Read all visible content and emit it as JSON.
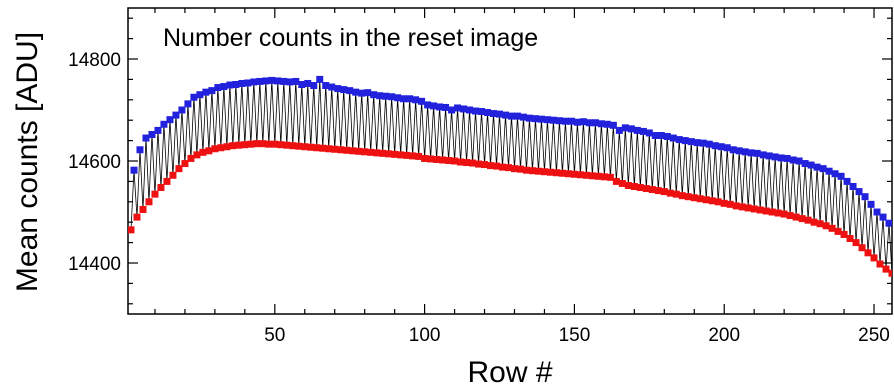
{
  "chart_data": {
    "type": "scatter",
    "title": "Number counts in the reset image",
    "xlabel": "Row #",
    "ylabel": "Mean counts [ADU]",
    "xlim": [
      1,
      256
    ],
    "ylim": [
      14300,
      14900
    ],
    "x_ticks": [
      50,
      100,
      150,
      200,
      250
    ],
    "y_ticks": [
      14400,
      14600,
      14800
    ],
    "grid": false,
    "connector_line": {
      "color": "#000000",
      "style": "solid-thin",
      "alternates_series": true
    },
    "series": [
      {
        "role": "upper",
        "color": "#2222dd",
        "marker": "square",
        "x": [
          3,
          5,
          7,
          9,
          11,
          13,
          15,
          17,
          19,
          21,
          23,
          25,
          27,
          29,
          31,
          33,
          35,
          37,
          39,
          41,
          43,
          45,
          47,
          49,
          51,
          53,
          55,
          57,
          59,
          61,
          63,
          65,
          67,
          69,
          71,
          73,
          75,
          77,
          79,
          81,
          83,
          85,
          87,
          89,
          91,
          93,
          95,
          97,
          99,
          101,
          103,
          105,
          107,
          109,
          111,
          113,
          115,
          117,
          119,
          121,
          123,
          125,
          127,
          129,
          131,
          133,
          135,
          137,
          139,
          141,
          143,
          145,
          147,
          149,
          151,
          153,
          155,
          157,
          159,
          161,
          163,
          165,
          167,
          169,
          171,
          173,
          175,
          177,
          179,
          181,
          183,
          185,
          187,
          189,
          191,
          193,
          195,
          197,
          199,
          201,
          203,
          205,
          207,
          209,
          211,
          213,
          215,
          217,
          219,
          221,
          223,
          225,
          227,
          229,
          231,
          233,
          235,
          237,
          239,
          241,
          243,
          245,
          247,
          249,
          251,
          253,
          255
        ],
        "y": [
          14582,
          14622,
          14645,
          14652,
          14660,
          14672,
          14681,
          14690,
          14700,
          14712,
          14725,
          14730,
          14735,
          14738,
          14744,
          14746,
          14749,
          14750,
          14752,
          14753,
          14755,
          14756,
          14757,
          14758,
          14757,
          14756,
          14755,
          14756,
          14750,
          14752,
          14748,
          14760,
          14748,
          14745,
          14742,
          14740,
          14738,
          14735,
          14733,
          14734,
          14730,
          14728,
          14727,
          14726,
          14724,
          14722,
          14722,
          14720,
          14717,
          14710,
          14708,
          14706,
          14705,
          14700,
          14704,
          14702,
          14700,
          14698,
          14697,
          14695,
          14693,
          14692,
          14690,
          14688,
          14688,
          14686,
          14684,
          14683,
          14682,
          14681,
          14680,
          14679,
          14678,
          14678,
          14676,
          14677,
          14675,
          14675,
          14673,
          14672,
          14670,
          14660,
          14665,
          14663,
          14660,
          14658,
          14655,
          14650,
          14650,
          14648,
          14645,
          14642,
          14640,
          14638,
          14636,
          14635,
          14633,
          14630,
          14628,
          14626,
          14622,
          14620,
          14618,
          14616,
          14615,
          14612,
          14610,
          14608,
          14606,
          14605,
          14602,
          14600,
          14595,
          14592,
          14588,
          14585,
          14580,
          14575,
          14570,
          14560,
          14550,
          14540,
          14530,
          14515,
          14500,
          14490,
          14478
        ]
      },
      {
        "role": "lower",
        "color": "#ee1111",
        "marker": "square",
        "x": [
          2,
          4,
          6,
          8,
          10,
          12,
          14,
          16,
          18,
          20,
          22,
          24,
          26,
          28,
          30,
          32,
          34,
          36,
          38,
          40,
          42,
          44,
          46,
          48,
          50,
          52,
          54,
          56,
          58,
          60,
          62,
          64,
          66,
          68,
          70,
          72,
          74,
          76,
          78,
          80,
          82,
          84,
          86,
          88,
          90,
          92,
          94,
          96,
          98,
          100,
          102,
          104,
          106,
          108,
          110,
          112,
          114,
          116,
          118,
          120,
          122,
          124,
          126,
          128,
          130,
          132,
          134,
          136,
          138,
          140,
          142,
          144,
          146,
          148,
          150,
          152,
          154,
          156,
          158,
          160,
          162,
          164,
          166,
          168,
          170,
          172,
          174,
          176,
          178,
          180,
          182,
          184,
          186,
          188,
          190,
          192,
          194,
          196,
          198,
          200,
          202,
          204,
          206,
          208,
          210,
          212,
          214,
          216,
          218,
          220,
          222,
          224,
          226,
          228,
          230,
          232,
          234,
          236,
          238,
          240,
          242,
          244,
          246,
          248,
          250,
          252,
          254,
          256
        ],
        "y": [
          14465,
          14490,
          14505,
          14520,
          14535,
          14548,
          14560,
          14572,
          14585,
          14595,
          14605,
          14612,
          14617,
          14620,
          14624,
          14626,
          14628,
          14630,
          14631,
          14632,
          14633,
          14634,
          14634,
          14633,
          14633,
          14632,
          14631,
          14630,
          14629,
          14628,
          14627,
          14626,
          14625,
          14624,
          14623,
          14622,
          14621,
          14620,
          14619,
          14618,
          14617,
          14616,
          14615,
          14614,
          14613,
          14612,
          14611,
          14610,
          14609,
          14605,
          14604,
          14603,
          14602,
          14601,
          14600,
          14598,
          14597,
          14596,
          14594,
          14593,
          14591,
          14590,
          14588,
          14587,
          14585,
          14584,
          14582,
          14581,
          14580,
          14579,
          14578,
          14577,
          14576,
          14575,
          14574,
          14573,
          14572,
          14571,
          14570,
          14569,
          14568,
          14560,
          14556,
          14552,
          14550,
          14548,
          14546,
          14544,
          14542,
          14540,
          14537,
          14535,
          14532,
          14530,
          14528,
          14526,
          14524,
          14522,
          14520,
          14517,
          14515,
          14512,
          14510,
          14508,
          14506,
          14504,
          14502,
          14500,
          14498,
          14496,
          14493,
          14490,
          14487,
          14484,
          14480,
          14477,
          14473,
          14468,
          14462,
          14456,
          14448,
          14440,
          14430,
          14420,
          14410,
          14398,
          14388,
          14380
        ]
      }
    ]
  }
}
